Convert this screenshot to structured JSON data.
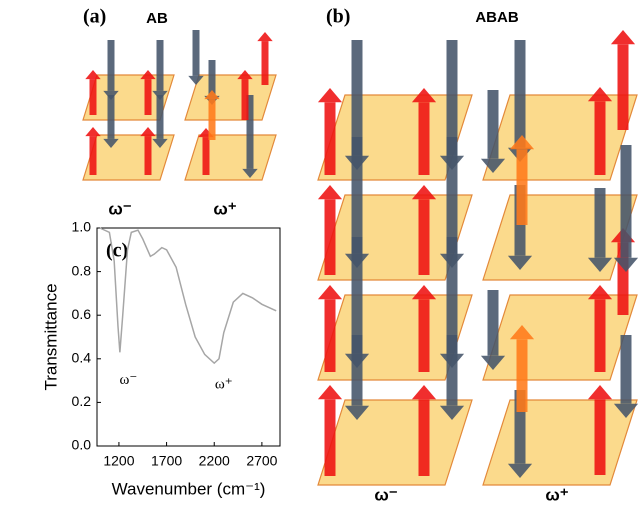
{
  "labels": {
    "a": "(a)",
    "a_title": "AB",
    "a_minus": "ω⁻",
    "a_plus": "ω⁺",
    "b": "(b)",
    "b_title": "ABAB",
    "b_minus": "ω⁻",
    "b_plus": "ω⁺"
  },
  "chart_data": {
    "type": "line",
    "label": "(c)",
    "x_label": "Wavenumber (cm⁻¹)",
    "y_label": "Transmittance",
    "x": [
      1000,
      1100,
      1150,
      1190,
      1210,
      1240,
      1290,
      1330,
      1400,
      1450,
      1530,
      1570,
      1650,
      1700,
      1800,
      1900,
      2000,
      2100,
      2200,
      2250,
      2300,
      2400,
      2500,
      2600,
      2700,
      2850
    ],
    "series": [
      {
        "color": "#a6a6a6",
        "values": [
          1.0,
          0.98,
          0.85,
          0.55,
          0.43,
          0.6,
          0.9,
          0.98,
          0.99,
          0.95,
          0.87,
          0.88,
          0.91,
          0.9,
          0.82,
          0.65,
          0.5,
          0.42,
          0.38,
          0.4,
          0.52,
          0.66,
          0.7,
          0.68,
          0.65,
          0.62
        ]
      }
    ],
    "xlim": [
      970,
      2890
    ],
    "ylim": [
      0,
      1.0
    ],
    "xticks": [
      1200,
      1700,
      2200,
      2700
    ],
    "yticks": [
      {
        "value": 0,
        "label": "0.0"
      },
      0.2,
      0.4,
      0.6,
      0.8,
      {
        "value": 1.0,
        "label": "1.0"
      }
    ],
    "annotations": [
      {
        "text": "ω⁻",
        "x": 1300,
        "y": 0.3
      },
      {
        "text": "ω⁺",
        "x": 2300,
        "y": 0.28
      }
    ]
  }
}
